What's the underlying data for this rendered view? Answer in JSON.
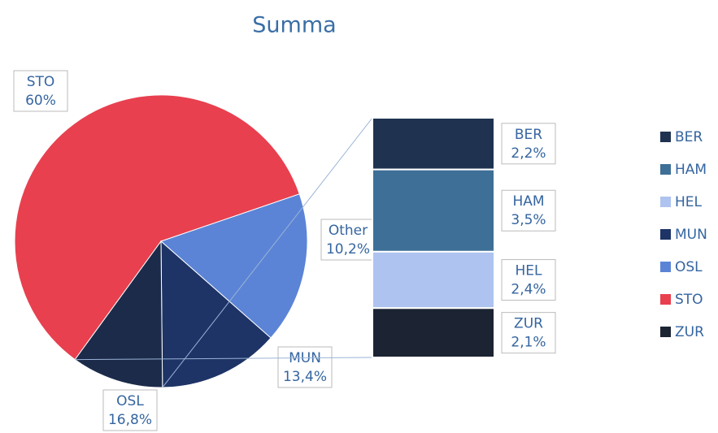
{
  "chart_data": {
    "type": "pie",
    "title": "Summa",
    "categories": [
      "STO",
      "OSL",
      "MUN",
      "Other"
    ],
    "values": [
      60,
      16.8,
      13.4,
      10.2
    ],
    "value_labels": [
      "60%",
      "16,8%",
      "13,4%",
      "10,2%"
    ],
    "colors": [
      "#e8404f",
      "#5b84d6",
      "#1e3466",
      "#1c2b4a"
    ],
    "breakdown": {
      "type": "bar",
      "categories": [
        "BER",
        "HAM",
        "HEL",
        "ZUR"
      ],
      "values": [
        2.2,
        3.5,
        2.4,
        2.1
      ],
      "value_labels": [
        "2,2%",
        "3,5%",
        "2,4%",
        "2,1%"
      ],
      "colors": [
        "#1f3350",
        "#3e6f96",
        "#aec3ef",
        "#1c2433"
      ]
    },
    "legend": {
      "position": "right",
      "entries": [
        {
          "name": "BER",
          "color": "#1f3350"
        },
        {
          "name": "HAM",
          "color": "#3e6f96"
        },
        {
          "name": "HEL",
          "color": "#aec3ef"
        },
        {
          "name": "MUN",
          "color": "#1e3466"
        },
        {
          "name": "OSL",
          "color": "#5b84d6"
        },
        {
          "name": "STO",
          "color": "#e8404f"
        },
        {
          "name": "ZUR",
          "color": "#1c2433"
        }
      ]
    }
  }
}
